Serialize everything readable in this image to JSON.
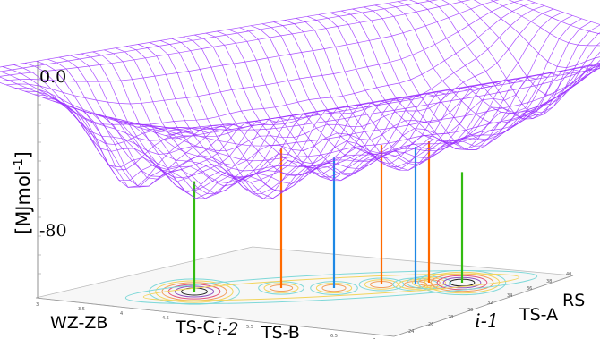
{
  "chart_data": {
    "type": "surface",
    "zlabel": "[MJmol-1]",
    "zlabel_main": "[MJmol",
    "zlabel_sup": "-1",
    "zlabel_end": "]",
    "zticks": [
      "0.0",
      "-80"
    ],
    "front_axis_labels": [
      "WZ-ZB",
      "TS-C",
      "i-2",
      "TS-B"
    ],
    "side_axis_labels": [
      "i-1",
      "TS-A",
      "RS"
    ],
    "minima": [
      {
        "name": "WZ-ZB",
        "depth": -62
      },
      {
        "name": "TS-C",
        "depth": -44
      },
      {
        "name": "i-2",
        "depth": -49
      },
      {
        "name": "TS-B",
        "depth": -42
      },
      {
        "name": "i-1",
        "depth": -43
      },
      {
        "name": "TS-A",
        "depth": -40
      },
      {
        "name": "RS",
        "depth": -57
      }
    ],
    "colors": {
      "mesh": "#9b30ff",
      "minimum_line": "#33bb11",
      "transition_line": "#ff6a00",
      "intermediate_line": "#1e88e5"
    },
    "small_front_ticks": [
      "3",
      "3.5",
      "4",
      "4.5",
      "5",
      "5.5",
      "6",
      "6.5",
      "7"
    ],
    "small_side_ticks": [
      "24",
      "26",
      "28",
      "30",
      "32",
      "34",
      "36",
      "38",
      "40"
    ]
  }
}
